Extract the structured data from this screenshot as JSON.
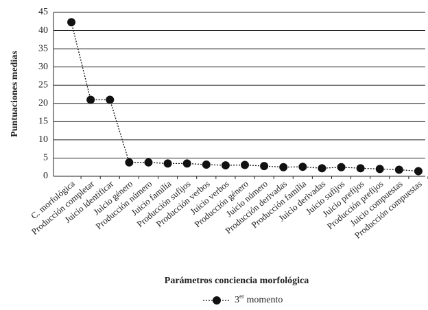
{
  "chart_data": {
    "type": "line",
    "x_label": "Parámetros conciencia morfológica",
    "y_label": "Puntuaciones medias",
    "categories": [
      "C. morfológica",
      "Producción completar",
      "Juicio identificar",
      "Juicio género",
      "Producción número",
      "Juicio familia",
      "Producción sufijos",
      "Producción verbos",
      "Juicio verbos",
      "Producción género",
      "Juicio número",
      "Producción derivadas",
      "Producción familia",
      "Juicio derivadas",
      "Juicio sufijos",
      "Juicio prefijos",
      "Producción prefijos",
      "Juicio compuestas",
      "Producción compuestas"
    ],
    "series": [
      {
        "name": "3er momento",
        "color": "#111111",
        "values": [
          42.3,
          21,
          21,
          3.8,
          3.8,
          3.5,
          3.5,
          3.2,
          3.0,
          3.1,
          2.8,
          2.5,
          2.6,
          2.2,
          2.5,
          2.2,
          2.0,
          1.8,
          1.4
        ]
      }
    ],
    "ylim": [
      0,
      45
    ],
    "yticks": [
      0,
      5,
      10,
      15,
      20,
      25,
      30,
      35,
      40,
      45
    ],
    "grid": true,
    "legend": "bottom"
  }
}
